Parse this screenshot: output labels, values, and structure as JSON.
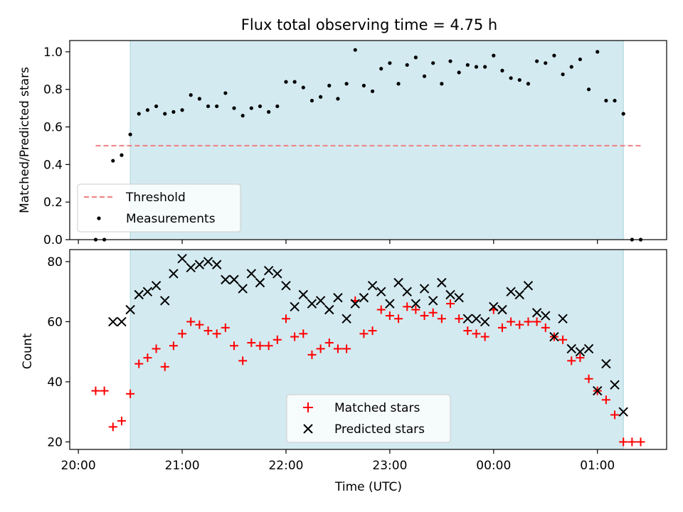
{
  "chart_data": [
    {
      "type": "scatter",
      "title": "Flux total observing time = 4.75 h",
      "ylabel": "Matched/Predicted stars",
      "ylim": [
        0,
        1.06
      ],
      "yticks": [
        "0.0",
        "0.2",
        "0.4",
        "0.6",
        "0.8",
        "1.0"
      ],
      "observing_window": [
        "20:30",
        "01:15"
      ],
      "threshold": {
        "name": "Threshold",
        "value": 0.5,
        "from": "20:10",
        "to": "01:25",
        "color": "#f08080"
      },
      "legend": {
        "placement": "lower-left"
      },
      "series": [
        {
          "name": "Measurements",
          "color": "#000000",
          "points": [
            [
              "20:10",
              0.0
            ],
            [
              "20:15",
              0.0
            ],
            [
              "20:20",
              0.42
            ],
            [
              "20:25",
              0.45
            ],
            [
              "20:30",
              0.56
            ],
            [
              "20:35",
              0.67
            ],
            [
              "20:40",
              0.69
            ],
            [
              "20:45",
              0.71
            ],
            [
              "20:50",
              0.67
            ],
            [
              "20:55",
              0.68
            ],
            [
              "21:00",
              0.69
            ],
            [
              "21:05",
              0.77
            ],
            [
              "21:10",
              0.75
            ],
            [
              "21:15",
              0.71
            ],
            [
              "21:20",
              0.71
            ],
            [
              "21:25",
              0.78
            ],
            [
              "21:30",
              0.7
            ],
            [
              "21:35",
              0.66
            ],
            [
              "21:40",
              0.7
            ],
            [
              "21:45",
              0.71
            ],
            [
              "21:50",
              0.68
            ],
            [
              "21:55",
              0.71
            ],
            [
              "22:00",
              0.84
            ],
            [
              "22:05",
              0.84
            ],
            [
              "22:10",
              0.81
            ],
            [
              "22:15",
              0.74
            ],
            [
              "22:20",
              0.76
            ],
            [
              "22:25",
              0.82
            ],
            [
              "22:30",
              0.75
            ],
            [
              "22:35",
              0.83
            ],
            [
              "22:40",
              1.01
            ],
            [
              "22:45",
              0.82
            ],
            [
              "22:50",
              0.79
            ],
            [
              "22:55",
              0.91
            ],
            [
              "23:00",
              0.94
            ],
            [
              "23:05",
              0.83
            ],
            [
              "23:10",
              0.93
            ],
            [
              "23:15",
              0.97
            ],
            [
              "23:20",
              0.87
            ],
            [
              "23:25",
              0.94
            ],
            [
              "23:30",
              0.83
            ],
            [
              "23:35",
              0.95
            ],
            [
              "23:40",
              0.89
            ],
            [
              "23:45",
              0.93
            ],
            [
              "23:50",
              0.92
            ],
            [
              "23:55",
              0.92
            ],
            [
              "00:00",
              0.98
            ],
            [
              "00:05",
              0.9
            ],
            [
              "00:10",
              0.86
            ],
            [
              "00:15",
              0.85
            ],
            [
              "00:20",
              0.83
            ],
            [
              "00:25",
              0.95
            ],
            [
              "00:30",
              0.94
            ],
            [
              "00:35",
              0.98
            ],
            [
              "00:40",
              0.88
            ],
            [
              "00:45",
              0.92
            ],
            [
              "00:50",
              0.96
            ],
            [
              "00:55",
              0.8
            ],
            [
              "01:00",
              1.0
            ],
            [
              "01:05",
              0.74
            ],
            [
              "01:10",
              0.74
            ],
            [
              "01:15",
              0.67
            ],
            [
              "01:20",
              0.0
            ],
            [
              "01:25",
              0.0
            ]
          ]
        }
      ]
    },
    {
      "type": "scatter",
      "xlabel": "Time (UTC)",
      "ylabel": "Count",
      "ylim": [
        17.5,
        84
      ],
      "yticks": [
        "20",
        "40",
        "60",
        "80"
      ],
      "xticks": [
        "20:00",
        "21:00",
        "22:00",
        "23:00",
        "00:00",
        "01:00"
      ],
      "xlim": [
        "19:55",
        "01:40"
      ],
      "observing_window": [
        "20:30",
        "01:15"
      ],
      "legend": {
        "placement": "lower-center"
      },
      "series": [
        {
          "name": "Matched stars",
          "marker": "plus",
          "color": "#ff0000",
          "points": [
            [
              "20:10",
              37
            ],
            [
              "20:15",
              37
            ],
            [
              "20:20",
              25
            ],
            [
              "20:25",
              27
            ],
            [
              "20:30",
              36
            ],
            [
              "20:35",
              46
            ],
            [
              "20:40",
              48
            ],
            [
              "20:45",
              51
            ],
            [
              "20:50",
              45
            ],
            [
              "20:55",
              52
            ],
            [
              "21:00",
              56
            ],
            [
              "21:05",
              60
            ],
            [
              "21:10",
              59
            ],
            [
              "21:15",
              57
            ],
            [
              "21:20",
              56
            ],
            [
              "21:25",
              58
            ],
            [
              "21:30",
              52
            ],
            [
              "21:35",
              47
            ],
            [
              "21:40",
              53
            ],
            [
              "21:45",
              52
            ],
            [
              "21:50",
              52
            ],
            [
              "21:55",
              54
            ],
            [
              "22:00",
              61
            ],
            [
              "22:05",
              55
            ],
            [
              "22:10",
              56
            ],
            [
              "22:15",
              49
            ],
            [
              "22:20",
              51
            ],
            [
              "22:25",
              53
            ],
            [
              "22:30",
              51
            ],
            [
              "22:35",
              51
            ],
            [
              "22:40",
              67
            ],
            [
              "22:45",
              56
            ],
            [
              "22:50",
              57
            ],
            [
              "22:55",
              64
            ],
            [
              "23:00",
              62
            ],
            [
              "23:05",
              61
            ],
            [
              "23:10",
              65
            ],
            [
              "23:15",
              64
            ],
            [
              "23:20",
              62
            ],
            [
              "23:25",
              63
            ],
            [
              "23:30",
              61
            ],
            [
              "23:35",
              66
            ],
            [
              "23:40",
              61
            ],
            [
              "23:45",
              57
            ],
            [
              "23:50",
              56
            ],
            [
              "23:55",
              55
            ],
            [
              "00:00",
              64
            ],
            [
              "00:05",
              58
            ],
            [
              "00:10",
              60
            ],
            [
              "00:15",
              59
            ],
            [
              "00:20",
              60
            ],
            [
              "00:25",
              60
            ],
            [
              "00:30",
              58
            ],
            [
              "00:35",
              55
            ],
            [
              "00:40",
              54
            ],
            [
              "00:45",
              47
            ],
            [
              "00:50",
              48
            ],
            [
              "00:55",
              41
            ],
            [
              "01:00",
              37
            ],
            [
              "01:05",
              34
            ],
            [
              "01:10",
              29
            ],
            [
              "01:15",
              20
            ],
            [
              "01:20",
              20
            ],
            [
              "01:25",
              20
            ]
          ]
        },
        {
          "name": "Predicted stars",
          "marker": "x",
          "color": "#000000",
          "points": [
            [
              "20:20",
              60
            ],
            [
              "20:25",
              60
            ],
            [
              "20:30",
              64
            ],
            [
              "20:35",
              69
            ],
            [
              "20:40",
              70
            ],
            [
              "20:45",
              72
            ],
            [
              "20:50",
              67
            ],
            [
              "20:55",
              76
            ],
            [
              "21:00",
              81
            ],
            [
              "21:05",
              78
            ],
            [
              "21:10",
              79
            ],
            [
              "21:15",
              80
            ],
            [
              "21:20",
              79
            ],
            [
              "21:25",
              74
            ],
            [
              "21:30",
              74
            ],
            [
              "21:35",
              71
            ],
            [
              "21:40",
              76
            ],
            [
              "21:45",
              73
            ],
            [
              "21:50",
              77
            ],
            [
              "21:55",
              76
            ],
            [
              "22:00",
              72
            ],
            [
              "22:05",
              65
            ],
            [
              "22:10",
              69
            ],
            [
              "22:15",
              66
            ],
            [
              "22:20",
              67
            ],
            [
              "22:25",
              64
            ],
            [
              "22:30",
              68
            ],
            [
              "22:35",
              61
            ],
            [
              "22:40",
              66
            ],
            [
              "22:45",
              68
            ],
            [
              "22:50",
              72
            ],
            [
              "22:55",
              70
            ],
            [
              "23:00",
              66
            ],
            [
              "23:05",
              73
            ],
            [
              "23:10",
              70
            ],
            [
              "23:15",
              66
            ],
            [
              "23:20",
              71
            ],
            [
              "23:25",
              67
            ],
            [
              "23:30",
              73
            ],
            [
              "23:35",
              69
            ],
            [
              "23:40",
              68
            ],
            [
              "23:45",
              61
            ],
            [
              "23:50",
              61
            ],
            [
              "23:55",
              60
            ],
            [
              "00:00",
              65
            ],
            [
              "00:05",
              64
            ],
            [
              "00:10",
              70
            ],
            [
              "00:15",
              69
            ],
            [
              "00:20",
              72
            ],
            [
              "00:25",
              63
            ],
            [
              "00:30",
              62
            ],
            [
              "00:35",
              55
            ],
            [
              "00:40",
              61
            ],
            [
              "00:45",
              51
            ],
            [
              "00:50",
              50
            ],
            [
              "00:55",
              51
            ],
            [
              "01:00",
              37
            ],
            [
              "01:05",
              46
            ],
            [
              "01:10",
              39
            ],
            [
              "01:15",
              30
            ]
          ]
        }
      ]
    }
  ],
  "colors": {
    "shade": "#d3eaf0",
    "threshold": "#f08080",
    "matched": "#ff0000",
    "predicted": "#000000"
  }
}
